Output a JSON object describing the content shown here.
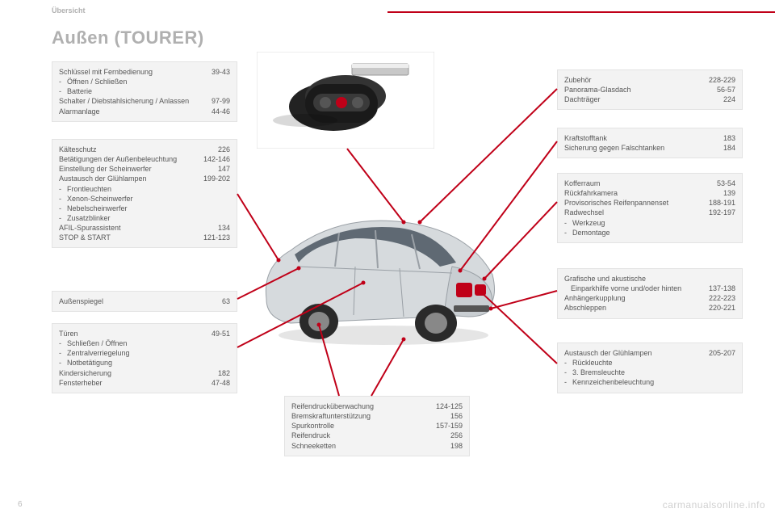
{
  "header": {
    "section": "Übersicht",
    "title": "Außen (TOURER)"
  },
  "page_number": "6",
  "watermark": "carmanualsonline.info",
  "colors": {
    "red": "#c00018",
    "grey_text": "#555555",
    "box_bg": "#f3f3f3",
    "faint": "#b0b0b0"
  },
  "left": {
    "box1": {
      "items": [
        {
          "label": "Schlüssel mit Fernbedienung",
          "pages": "39-43"
        },
        {
          "bullet": "Öffnen / Schließen"
        },
        {
          "bullet": "Batterie"
        },
        {
          "label": "Schalter / Diebstahlsicherung / Anlassen",
          "pages": "97-99"
        },
        {
          "label": "Alarmanlage",
          "pages": "44-46"
        }
      ]
    },
    "box2": {
      "items": [
        {
          "label": "Kälteschutz",
          "pages": "226"
        },
        {
          "label": "Betätigungen der Außenbeleuchtung",
          "pages": "142-146"
        },
        {
          "label": "Einstellung der Scheinwerfer",
          "pages": "147"
        },
        {
          "label": "Austausch der Glühlampen",
          "pages": "199-202"
        },
        {
          "bullet": "Frontleuchten"
        },
        {
          "bullet": "Xenon-Scheinwerfer"
        },
        {
          "bullet": "Nebelscheinwerfer"
        },
        {
          "bullet": "Zusatzblinker"
        },
        {
          "label": "AFIL-Spurassistent",
          "pages": "134"
        },
        {
          "label": "STOP & START",
          "pages": "121-123"
        }
      ]
    },
    "box3": {
      "items": [
        {
          "label": "Außenspiegel",
          "pages": "63"
        }
      ]
    },
    "box4": {
      "items": [
        {
          "label": "Türen",
          "pages": "49-51"
        },
        {
          "bullet": "Schließen / Öffnen"
        },
        {
          "bullet": "Zentralverriegelung"
        },
        {
          "bullet": "Notbetätigung"
        },
        {
          "label": "Kindersicherung",
          "pages": "182"
        },
        {
          "label": "Fensterheber",
          "pages": "47-48"
        }
      ]
    }
  },
  "center": {
    "box_bottom": {
      "items": [
        {
          "label": "Reifendrucküberwachung",
          "pages": "124-125"
        },
        {
          "label": "Bremskraftunterstützung",
          "pages": "156"
        },
        {
          "label": "Spurkontrolle",
          "pages": "157-159"
        },
        {
          "label": "Reifendruck",
          "pages": "256"
        },
        {
          "label": "Schneeketten",
          "pages": "198"
        }
      ]
    }
  },
  "right": {
    "box1": {
      "items": [
        {
          "label": "Zubehör",
          "pages": "228-229"
        },
        {
          "label": "Panorama-Glasdach",
          "pages": "56-57"
        },
        {
          "label": "Dachträger",
          "pages": "224"
        }
      ]
    },
    "box2": {
      "items": [
        {
          "label": "Kraftstofftank",
          "pages": "183"
        },
        {
          "label": "Sicherung gegen Falschtanken",
          "pages": "184"
        }
      ]
    },
    "box3": {
      "items": [
        {
          "label": "Kofferraum",
          "pages": "53-54"
        },
        {
          "label": "Rückfahrkamera",
          "pages": "139"
        },
        {
          "label": "Provisorisches Reifenpannenset",
          "pages": "188-191"
        },
        {
          "label": "Radwechsel",
          "pages": "192-197"
        },
        {
          "bullet": "Werkzeug"
        },
        {
          "bullet": "Demontage"
        }
      ]
    },
    "box4": {
      "items": [
        {
          "label": "Grafische und akustische"
        },
        {
          "label_indent": "Einparkhilfe vorne und/oder hinten",
          "pages": "137-138"
        },
        {
          "label": "Anhängerkupplung",
          "pages": "222-223"
        },
        {
          "label": "Abschleppen",
          "pages": "220-221"
        }
      ]
    },
    "box5": {
      "items": [
        {
          "label": "Austausch der Glühlampen",
          "pages": "205-207"
        },
        {
          "bullet": "Rückleuchte"
        },
        {
          "bullet": "3. Bremsleuchte"
        },
        {
          "bullet": "Kennzeichenbeleuchtung"
        }
      ]
    }
  }
}
